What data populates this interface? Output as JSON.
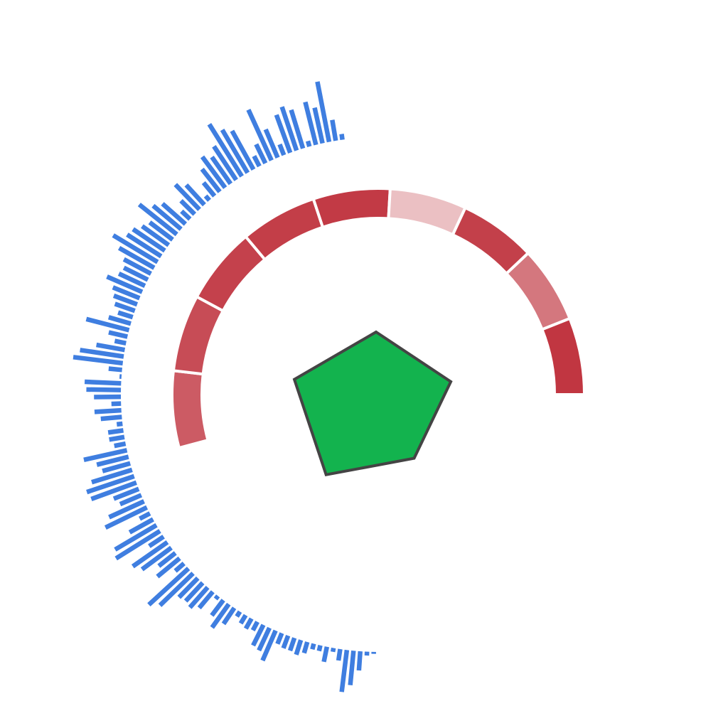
{
  "chart_data": {
    "type": "radial",
    "title": "",
    "outer_bars": {
      "values": [
        0.06,
        0.22,
        0.64,
        0.38,
        0.46,
        0.06,
        0.42,
        0.48,
        0.42,
        0.12,
        0.32,
        0.58,
        0.22,
        0.12,
        0.46,
        0.52,
        0.64,
        0.42,
        0.34,
        0.4,
        0.3,
        0.18,
        0.06,
        0.28,
        0.36,
        0.2,
        0.12,
        0.32,
        0.38,
        0.5,
        0.3,
        0.34,
        0.4,
        0.42,
        0.54,
        0.42,
        0.32,
        0.28,
        0.3,
        0.4,
        0.3,
        0.26,
        0.22,
        0.16,
        0.24,
        0.46,
        0.2,
        0.12,
        0.3,
        0.46,
        0.52,
        0.14,
        0.02,
        0.38,
        0.36,
        0.28,
        0.1,
        0.28,
        0.22,
        0.06,
        0.16,
        0.16,
        0.12,
        0.46,
        0.34,
        0.3,
        0.44,
        0.52,
        0.5,
        0.28,
        0.24,
        0.4,
        0.48,
        0.12,
        0.28,
        0.5,
        0.54,
        0.18,
        0.44,
        0.38,
        0.22,
        0.3,
        0.12,
        0.56,
        0.48,
        0.28,
        0.26,
        0.28,
        0.22,
        0.04,
        0.2,
        0.3,
        0.2,
        0.06,
        0.1,
        0.12,
        0.1,
        0.24,
        0.26,
        0.34,
        0.12,
        0.14,
        0.14,
        0.16,
        0.12,
        0.06,
        0.06,
        0.16,
        0.04,
        0.12,
        0.44,
        0.36,
        0.2,
        0.04,
        0.02
      ],
      "color": "#3f7ee0"
    },
    "ring_segments": {
      "values": [
        0.7,
        0.78,
        0.84,
        0.86,
        0.88,
        0.15,
        0.85,
        0.55,
        0.9
      ],
      "color_scale": [
        "#f3dcdd",
        "#bb2430"
      ]
    },
    "polygon": {
      "values": [
        0.8,
        0.85,
        0.7,
        0.92,
        0.93
      ],
      "fill": "#13b34e",
      "stroke": "#444444"
    }
  }
}
